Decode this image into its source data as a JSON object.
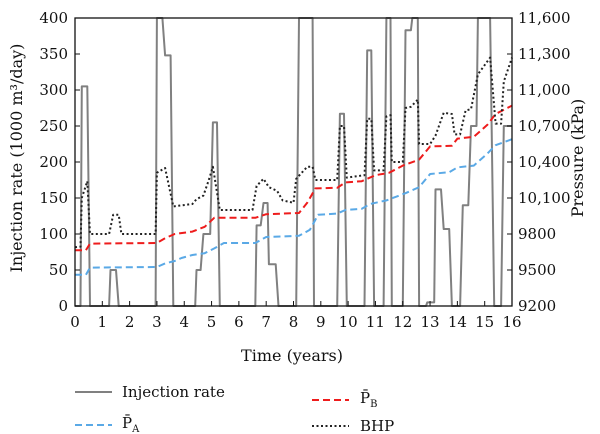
{
  "chart_data": {
    "type": "line",
    "xlabel": "Time (years)",
    "ylabel_left": "Injection rate (1000 m³/day)",
    "ylabel_right": "Pressure (kPa)",
    "xlim": [
      0,
      16
    ],
    "ylim_left": [
      0,
      400
    ],
    "ylim_right": [
      9200,
      11600
    ],
    "x_ticks": [
      "0",
      "1",
      "2",
      "3",
      "4",
      "5",
      "6",
      "7",
      "8",
      "9",
      "10",
      "11",
      "12",
      "13",
      "14",
      "15",
      "16"
    ],
    "y_ticks_left": [
      "0",
      "50",
      "100",
      "150",
      "200",
      "250",
      "300",
      "350",
      "400"
    ],
    "y_ticks_right": [
      "9200",
      "9500",
      "9800",
      "10,100",
      "10,400",
      "10,700",
      "11,000",
      "11,300",
      "11,600"
    ],
    "grid": false,
    "legend_position": "bottom",
    "colors": {
      "injection": "#808080",
      "pa": "#5aa9e6",
      "pb": "#ee1c1c",
      "bhp": "#222222"
    },
    "series": [
      {
        "name": "Injection rate",
        "axis": "left",
        "points": [
          [
            0,
            0
          ],
          [
            0.2,
            0
          ],
          [
            0.25,
            305
          ],
          [
            0.45,
            305
          ],
          [
            0.55,
            0
          ],
          [
            1.25,
            0
          ],
          [
            1.3,
            50
          ],
          [
            1.5,
            50
          ],
          [
            1.6,
            0
          ],
          [
            2.95,
            0
          ],
          [
            3.0,
            400
          ],
          [
            3.2,
            400
          ],
          [
            3.3,
            348
          ],
          [
            3.5,
            348
          ],
          [
            3.6,
            0
          ],
          [
            4.4,
            0
          ],
          [
            4.45,
            50
          ],
          [
            4.6,
            50
          ],
          [
            4.7,
            100
          ],
          [
            4.95,
            100
          ],
          [
            5.05,
            255
          ],
          [
            5.2,
            255
          ],
          [
            5.3,
            0
          ],
          [
            6.6,
            0
          ],
          [
            6.65,
            112
          ],
          [
            6.8,
            112
          ],
          [
            6.9,
            143
          ],
          [
            7.05,
            143
          ],
          [
            7.1,
            58
          ],
          [
            7.35,
            58
          ],
          [
            7.45,
            0
          ],
          [
            8.1,
            0
          ],
          [
            8.2,
            400
          ],
          [
            8.7,
            400
          ],
          [
            8.75,
            0
          ],
          [
            9.6,
            0
          ],
          [
            9.7,
            267
          ],
          [
            9.85,
            267
          ],
          [
            9.95,
            0
          ],
          [
            10.6,
            0
          ],
          [
            10.7,
            355
          ],
          [
            10.85,
            355
          ],
          [
            10.95,
            0
          ],
          [
            11.3,
            0
          ],
          [
            11.4,
            400
          ],
          [
            11.55,
            400
          ],
          [
            11.6,
            0
          ],
          [
            12.0,
            0
          ],
          [
            12.1,
            383
          ],
          [
            12.3,
            383
          ],
          [
            12.35,
            400
          ],
          [
            12.55,
            400
          ],
          [
            12.6,
            0
          ],
          [
            12.85,
            0
          ],
          [
            12.9,
            5
          ],
          [
            13.15,
            5
          ],
          [
            13.2,
            162
          ],
          [
            13.4,
            162
          ],
          [
            13.5,
            107
          ],
          [
            13.7,
            107
          ],
          [
            13.8,
            0
          ],
          [
            14.1,
            0
          ],
          [
            14.2,
            140
          ],
          [
            14.4,
            140
          ],
          [
            14.5,
            250
          ],
          [
            14.7,
            250
          ],
          [
            14.75,
            400
          ],
          [
            15.2,
            400
          ],
          [
            15.35,
            0
          ],
          [
            15.6,
            0
          ],
          [
            15.7,
            250
          ],
          [
            16.0,
            250
          ]
        ]
      },
      {
        "name": "P̄A",
        "label_main": "P̄",
        "label_sub": "A",
        "axis": "right",
        "points": [
          [
            0,
            9460
          ],
          [
            0.4,
            9460
          ],
          [
            0.55,
            9520
          ],
          [
            3.0,
            9525
          ],
          [
            3.3,
            9555
          ],
          [
            3.65,
            9575
          ],
          [
            3.9,
            9600
          ],
          [
            4.3,
            9625
          ],
          [
            4.75,
            9640
          ],
          [
            5.1,
            9680
          ],
          [
            5.45,
            9725
          ],
          [
            6.6,
            9725
          ],
          [
            7.0,
            9775
          ],
          [
            8.2,
            9785
          ],
          [
            8.6,
            9835
          ],
          [
            8.9,
            9960
          ],
          [
            9.6,
            9970
          ],
          [
            9.9,
            10000
          ],
          [
            10.5,
            10010
          ],
          [
            10.8,
            10050
          ],
          [
            11.4,
            10080
          ],
          [
            12.1,
            10140
          ],
          [
            12.6,
            10190
          ],
          [
            13.0,
            10300
          ],
          [
            13.7,
            10315
          ],
          [
            14.0,
            10355
          ],
          [
            14.6,
            10370
          ],
          [
            15.1,
            10470
          ],
          [
            15.4,
            10540
          ],
          [
            16.0,
            10590
          ]
        ]
      },
      {
        "name": "P̄B",
        "label_main": "P̄",
        "label_sub": "B",
        "axis": "right",
        "points": [
          [
            0,
            9665
          ],
          [
            0.4,
            9665
          ],
          [
            0.55,
            9720
          ],
          [
            3.0,
            9725
          ],
          [
            3.3,
            9765
          ],
          [
            3.65,
            9800
          ],
          [
            4.3,
            9820
          ],
          [
            4.75,
            9860
          ],
          [
            5.1,
            9935
          ],
          [
            5.4,
            9935
          ],
          [
            6.6,
            9935
          ],
          [
            7.0,
            9965
          ],
          [
            8.2,
            9975
          ],
          [
            8.5,
            10060
          ],
          [
            8.8,
            10180
          ],
          [
            9.6,
            10185
          ],
          [
            9.9,
            10230
          ],
          [
            10.5,
            10240
          ],
          [
            11.0,
            10290
          ],
          [
            11.5,
            10310
          ],
          [
            12.0,
            10370
          ],
          [
            12.6,
            10420
          ],
          [
            13.0,
            10530
          ],
          [
            13.8,
            10535
          ],
          [
            14.0,
            10595
          ],
          [
            14.6,
            10610
          ],
          [
            15.1,
            10710
          ],
          [
            15.4,
            10800
          ],
          [
            16.0,
            10870
          ]
        ]
      },
      {
        "name": "BHP",
        "axis": "right",
        "points": [
          [
            0,
            9690
          ],
          [
            0.2,
            9695
          ],
          [
            0.25,
            10100
          ],
          [
            0.45,
            10240
          ],
          [
            0.55,
            9800
          ],
          [
            1.25,
            9800
          ],
          [
            1.4,
            9960
          ],
          [
            1.6,
            9960
          ],
          [
            1.7,
            9800
          ],
          [
            2.95,
            9800
          ],
          [
            3.0,
            10310
          ],
          [
            3.3,
            10350
          ],
          [
            3.6,
            10030
          ],
          [
            4.3,
            10050
          ],
          [
            4.45,
            10090
          ],
          [
            4.7,
            10120
          ],
          [
            4.9,
            10250
          ],
          [
            5.05,
            10360
          ],
          [
            5.3,
            10000
          ],
          [
            6.5,
            10000
          ],
          [
            6.65,
            10200
          ],
          [
            6.9,
            10260
          ],
          [
            7.1,
            10190
          ],
          [
            7.4,
            10160
          ],
          [
            7.6,
            10080
          ],
          [
            8.0,
            10060
          ],
          [
            8.1,
            10260
          ],
          [
            8.5,
            10360
          ],
          [
            8.7,
            10360
          ],
          [
            8.8,
            10250
          ],
          [
            9.6,
            10250
          ],
          [
            9.7,
            10700
          ],
          [
            9.85,
            10700
          ],
          [
            9.95,
            10270
          ],
          [
            10.6,
            10290
          ],
          [
            10.7,
            10760
          ],
          [
            10.85,
            10760
          ],
          [
            10.95,
            10330
          ],
          [
            11.3,
            10330
          ],
          [
            11.4,
            10780
          ],
          [
            11.55,
            10790
          ],
          [
            11.6,
            10400
          ],
          [
            12.0,
            10400
          ],
          [
            12.1,
            10850
          ],
          [
            12.3,
            10860
          ],
          [
            12.55,
            10920
          ],
          [
            12.6,
            10550
          ],
          [
            13.0,
            10550
          ],
          [
            13.2,
            10620
          ],
          [
            13.5,
            10810
          ],
          [
            13.8,
            10800
          ],
          [
            13.9,
            10630
          ],
          [
            14.1,
            10630
          ],
          [
            14.3,
            10830
          ],
          [
            14.5,
            10840
          ],
          [
            14.75,
            11130
          ],
          [
            15.2,
            11270
          ],
          [
            15.4,
            10720
          ],
          [
            15.6,
            10720
          ],
          [
            15.7,
            11070
          ],
          [
            16.0,
            11270
          ]
        ]
      }
    ],
    "legend": {
      "injection": "Injection rate",
      "pb_main": "P̄",
      "pb_sub": "B",
      "pa_main": "P̄",
      "pa_sub": "A",
      "bhp": "BHP"
    }
  }
}
